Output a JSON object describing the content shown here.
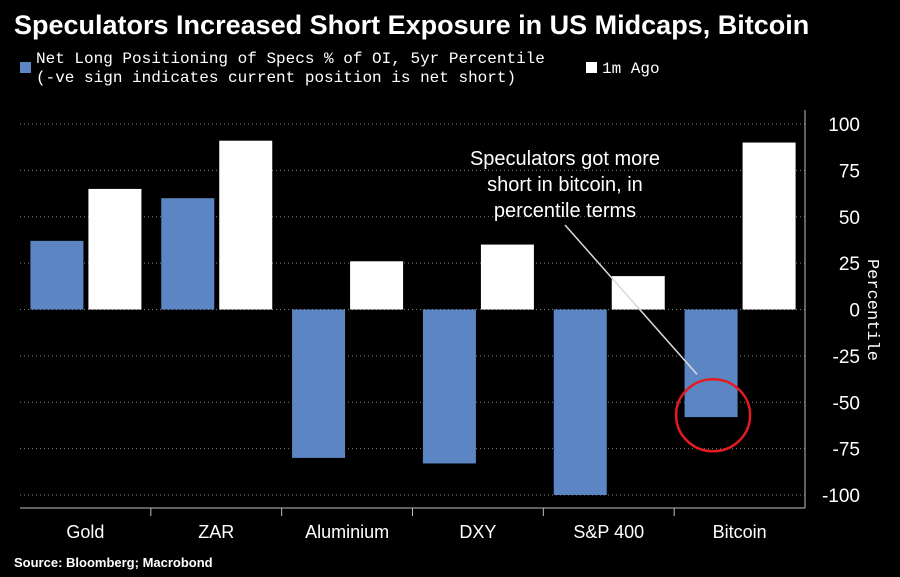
{
  "title": "Speculators Increased Short Exposure in US Midcaps, Bitcoin",
  "source": "Source: Bloomberg; Macrobond",
  "colors": {
    "current": "#5b86c3",
    "month_ago": "#ffffff",
    "background": "#000000",
    "grid": "#7f7f7f",
    "circle": "#e31b23"
  },
  "chart_data": {
    "type": "bar",
    "categories": [
      "Gold",
      "ZAR",
      "Aluminium",
      "DXY",
      "S&P 400",
      "Bitcoin"
    ],
    "series": [
      {
        "name": "Net Long Positioning of Specs % of OI, 5yr Percentile\n(-ve sign indicates current position is net short)",
        "values": [
          37,
          60,
          -80,
          -83,
          -100,
          -58
        ]
      },
      {
        "name": "1m Ago",
        "values": [
          65,
          91,
          26,
          35,
          18,
          90
        ]
      }
    ],
    "ylabel": "Percentile",
    "ylim": [
      -100,
      100
    ],
    "yticks": [
      100,
      75,
      50,
      25,
      0,
      -25,
      -50,
      -75,
      -100
    ],
    "ytick_labels": [
      "100",
      "75",
      "50",
      "25",
      "0",
      "-25",
      "-50",
      "-75",
      "-100"
    ],
    "grid": true,
    "legend_position": "top-left",
    "y_axis_side": "right",
    "annotation": {
      "lines": [
        "Speculators got more",
        "short in bitcoin, in",
        "percentile terms"
      ],
      "points_to": "Bitcoin"
    }
  }
}
